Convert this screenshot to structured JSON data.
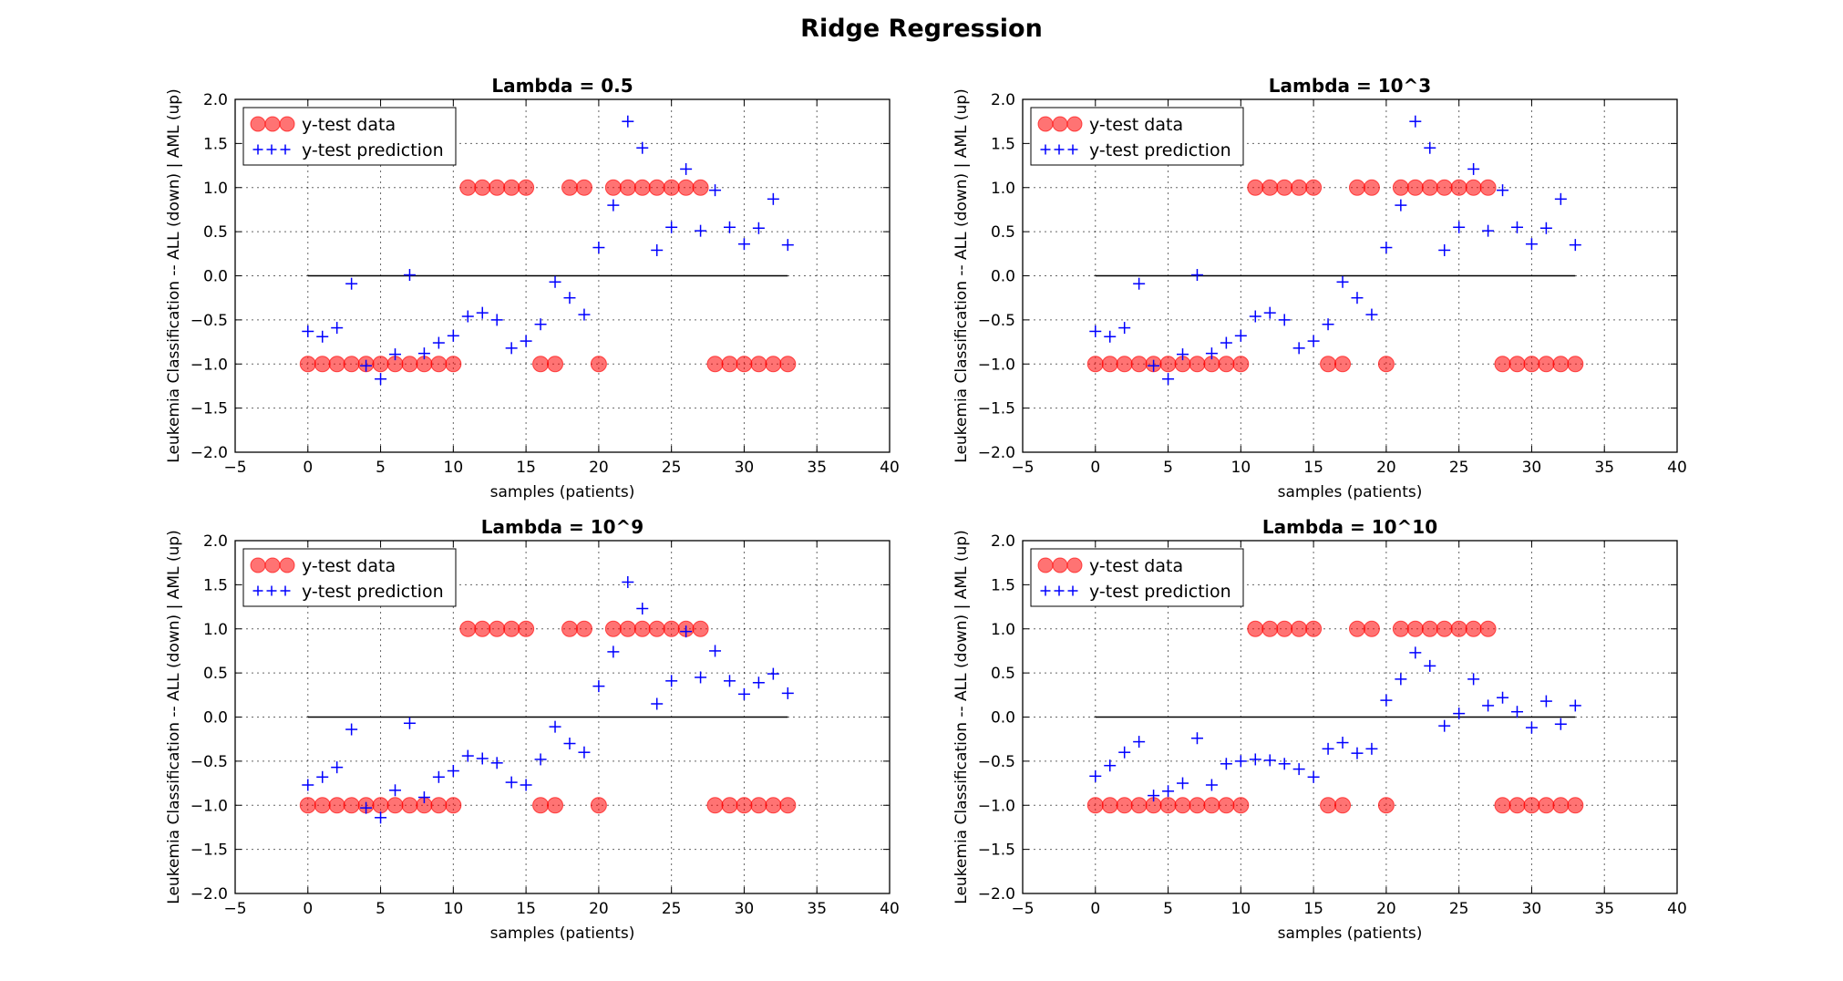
{
  "figure": {
    "suptitle": "Ridge Regression"
  },
  "chart_data": [
    {
      "type": "scatter",
      "title": "Lambda = 0.5",
      "xlabel": "samples (patients)",
      "ylabel": "Leukemia Classification -- ALL (down) | AML (up)",
      "xlim": [
        -5,
        40
      ],
      "ylim": [
        -2.0,
        2.0
      ],
      "xticks": [
        "−5",
        "0",
        "5",
        "10",
        "15",
        "20",
        "25",
        "30",
        "35",
        "40"
      ],
      "yticks": [
        "−2.0",
        "−1.5",
        "−1.0",
        "−0.5",
        "0.0",
        "0.5",
        "1.0",
        "1.5",
        "2.0"
      ],
      "grid": true,
      "legend_position": "upper left",
      "zero_line": [
        0,
        33
      ],
      "series": [
        {
          "name": "y-test data",
          "marker": "circle",
          "color": "#ff0000",
          "x": [
            0,
            1,
            2,
            3,
            4,
            5,
            6,
            7,
            8,
            9,
            10,
            11,
            12,
            13,
            14,
            15,
            16,
            17,
            18,
            19,
            20,
            21,
            22,
            23,
            24,
            25,
            26,
            27,
            28,
            29,
            30,
            31,
            32,
            33
          ],
          "y": [
            -1,
            -1,
            -1,
            -1,
            -1,
            -1,
            -1,
            -1,
            -1,
            -1,
            -1,
            1,
            1,
            1,
            1,
            1,
            -1,
            -1,
            1,
            1,
            -1,
            1,
            1,
            1,
            1,
            1,
            1,
            1,
            -1,
            -1,
            -1,
            -1,
            -1,
            -1
          ]
        },
        {
          "name": "y-test prediction",
          "marker": "plus",
          "color": "#0000ff",
          "x": [
            0,
            1,
            2,
            3,
            4,
            5,
            6,
            7,
            8,
            9,
            10,
            11,
            12,
            13,
            14,
            15,
            16,
            17,
            18,
            19,
            20,
            21,
            22,
            23,
            24,
            25,
            26,
            27,
            28,
            29,
            30,
            31,
            32,
            33
          ],
          "y": [
            -0.63,
            -0.69,
            -0.59,
            -0.09,
            -1.02,
            -1.17,
            -0.89,
            0.01,
            -0.88,
            -0.76,
            -0.68,
            -0.46,
            -0.42,
            -0.5,
            -0.82,
            -0.74,
            -0.55,
            -0.07,
            -0.25,
            -0.44,
            0.32,
            0.8,
            1.75,
            1.45,
            0.29,
            0.55,
            1.21,
            0.51,
            0.97,
            0.55,
            0.36,
            0.54,
            0.87,
            0.35
          ]
        }
      ]
    },
    {
      "type": "scatter",
      "title": "Lambda = 10^3",
      "xlabel": "samples (patients)",
      "ylabel": "Leukemia Classification -- ALL (down) | AML (up)",
      "xlim": [
        -5,
        40
      ],
      "ylim": [
        -2.0,
        2.0
      ],
      "xticks": [
        "−5",
        "0",
        "5",
        "10",
        "15",
        "20",
        "25",
        "30",
        "35",
        "40"
      ],
      "yticks": [
        "−2.0",
        "−1.5",
        "−1.0",
        "−0.5",
        "0.0",
        "0.5",
        "1.0",
        "1.5",
        "2.0"
      ],
      "grid": true,
      "legend_position": "upper left",
      "zero_line": [
        0,
        33
      ],
      "series": [
        {
          "name": "y-test data",
          "marker": "circle",
          "color": "#ff0000",
          "x": [
            0,
            1,
            2,
            3,
            4,
            5,
            6,
            7,
            8,
            9,
            10,
            11,
            12,
            13,
            14,
            15,
            16,
            17,
            18,
            19,
            20,
            21,
            22,
            23,
            24,
            25,
            26,
            27,
            28,
            29,
            30,
            31,
            32,
            33
          ],
          "y": [
            -1,
            -1,
            -1,
            -1,
            -1,
            -1,
            -1,
            -1,
            -1,
            -1,
            -1,
            1,
            1,
            1,
            1,
            1,
            -1,
            -1,
            1,
            1,
            -1,
            1,
            1,
            1,
            1,
            1,
            1,
            1,
            -1,
            -1,
            -1,
            -1,
            -1,
            -1
          ]
        },
        {
          "name": "y-test prediction",
          "marker": "plus",
          "color": "#0000ff",
          "x": [
            0,
            1,
            2,
            3,
            4,
            5,
            6,
            7,
            8,
            9,
            10,
            11,
            12,
            13,
            14,
            15,
            16,
            17,
            18,
            19,
            20,
            21,
            22,
            23,
            24,
            25,
            26,
            27,
            28,
            29,
            30,
            31,
            32,
            33
          ],
          "y": [
            -0.63,
            -0.69,
            -0.59,
            -0.09,
            -1.02,
            -1.17,
            -0.89,
            0.01,
            -0.88,
            -0.76,
            -0.68,
            -0.46,
            -0.42,
            -0.5,
            -0.82,
            -0.74,
            -0.55,
            -0.07,
            -0.25,
            -0.44,
            0.32,
            0.8,
            1.75,
            1.45,
            0.29,
            0.55,
            1.21,
            0.51,
            0.97,
            0.55,
            0.36,
            0.54,
            0.87,
            0.35
          ]
        }
      ]
    },
    {
      "type": "scatter",
      "title": "Lambda = 10^9",
      "xlabel": "samples (patients)",
      "ylabel": "Leukemia Classification -- ALL (down) | AML (up)",
      "xlim": [
        -5,
        40
      ],
      "ylim": [
        -2.0,
        2.0
      ],
      "xticks": [
        "−5",
        "0",
        "5",
        "10",
        "15",
        "20",
        "25",
        "30",
        "35",
        "40"
      ],
      "yticks": [
        "−2.0",
        "−1.5",
        "−1.0",
        "−0.5",
        "0.0",
        "0.5",
        "1.0",
        "1.5",
        "2.0"
      ],
      "grid": true,
      "legend_position": "upper left",
      "zero_line": [
        0,
        33
      ],
      "series": [
        {
          "name": "y-test data",
          "marker": "circle",
          "color": "#ff0000",
          "x": [
            0,
            1,
            2,
            3,
            4,
            5,
            6,
            7,
            8,
            9,
            10,
            11,
            12,
            13,
            14,
            15,
            16,
            17,
            18,
            19,
            20,
            21,
            22,
            23,
            24,
            25,
            26,
            27,
            28,
            29,
            30,
            31,
            32,
            33
          ],
          "y": [
            -1,
            -1,
            -1,
            -1,
            -1,
            -1,
            -1,
            -1,
            -1,
            -1,
            -1,
            1,
            1,
            1,
            1,
            1,
            -1,
            -1,
            1,
            1,
            -1,
            1,
            1,
            1,
            1,
            1,
            1,
            1,
            -1,
            -1,
            -1,
            -1,
            -1,
            -1
          ]
        },
        {
          "name": "y-test prediction",
          "marker": "plus",
          "color": "#0000ff",
          "x": [
            0,
            1,
            2,
            3,
            4,
            5,
            6,
            7,
            8,
            9,
            10,
            11,
            12,
            13,
            14,
            15,
            16,
            17,
            18,
            19,
            20,
            21,
            22,
            23,
            24,
            25,
            26,
            27,
            28,
            29,
            30,
            31,
            32,
            33
          ],
          "y": [
            -0.77,
            -0.68,
            -0.57,
            -0.14,
            -1.03,
            -1.14,
            -0.83,
            -0.07,
            -0.91,
            -0.68,
            -0.61,
            -0.44,
            -0.47,
            -0.52,
            -0.74,
            -0.77,
            -0.48,
            -0.11,
            -0.3,
            -0.4,
            0.35,
            0.74,
            1.53,
            1.23,
            0.15,
            0.41,
            0.97,
            0.45,
            0.75,
            0.41,
            0.26,
            0.39,
            0.49,
            0.27
          ]
        }
      ]
    },
    {
      "type": "scatter",
      "title": "Lambda = 10^10",
      "xlabel": "samples (patients)",
      "ylabel": "Leukemia Classification -- ALL (down) | AML (up)",
      "xlim": [
        -5,
        40
      ],
      "ylim": [
        -2.0,
        2.0
      ],
      "xticks": [
        "−5",
        "0",
        "5",
        "10",
        "15",
        "20",
        "25",
        "30",
        "35",
        "40"
      ],
      "yticks": [
        "−2.0",
        "−1.5",
        "−1.0",
        "−0.5",
        "0.0",
        "0.5",
        "1.0",
        "1.5",
        "2.0"
      ],
      "grid": true,
      "legend_position": "upper left",
      "zero_line": [
        0,
        33
      ],
      "series": [
        {
          "name": "y-test data",
          "marker": "circle",
          "color": "#ff0000",
          "x": [
            0,
            1,
            2,
            3,
            4,
            5,
            6,
            7,
            8,
            9,
            10,
            11,
            12,
            13,
            14,
            15,
            16,
            17,
            18,
            19,
            20,
            21,
            22,
            23,
            24,
            25,
            26,
            27,
            28,
            29,
            30,
            31,
            32,
            33
          ],
          "y": [
            -1,
            -1,
            -1,
            -1,
            -1,
            -1,
            -1,
            -1,
            -1,
            -1,
            -1,
            1,
            1,
            1,
            1,
            1,
            -1,
            -1,
            1,
            1,
            -1,
            1,
            1,
            1,
            1,
            1,
            1,
            1,
            -1,
            -1,
            -1,
            -1,
            -1,
            -1
          ]
        },
        {
          "name": "y-test prediction",
          "marker": "plus",
          "color": "#0000ff",
          "x": [
            0,
            1,
            2,
            3,
            4,
            5,
            6,
            7,
            8,
            9,
            10,
            11,
            12,
            13,
            14,
            15,
            16,
            17,
            18,
            19,
            20,
            21,
            22,
            23,
            24,
            25,
            26,
            27,
            28,
            29,
            30,
            31,
            32,
            33
          ],
          "y": [
            -0.67,
            -0.55,
            -0.4,
            -0.28,
            -0.89,
            -0.84,
            -0.75,
            -0.24,
            -0.77,
            -0.53,
            -0.5,
            -0.48,
            -0.49,
            -0.53,
            -0.59,
            -0.68,
            -0.36,
            -0.29,
            -0.41,
            -0.36,
            0.19,
            0.43,
            0.73,
            0.58,
            -0.1,
            0.04,
            0.43,
            0.13,
            0.22,
            0.06,
            -0.12,
            0.18,
            -0.08,
            0.13
          ]
        }
      ]
    }
  ]
}
